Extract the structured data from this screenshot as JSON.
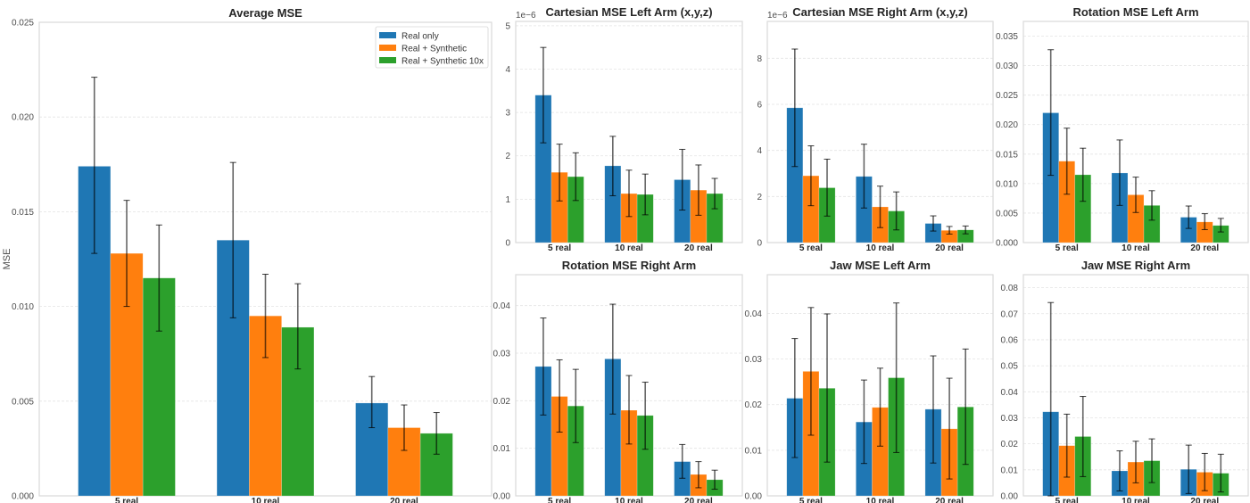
{
  "figure": {
    "legend_placement": "top-right of Average MSE panel"
  },
  "chart_data": [
    {
      "id": "avg",
      "type": "bar",
      "title": "Average MSE",
      "xlabel": "",
      "ylabel": "MSE",
      "categories": [
        "5 real",
        "10 real",
        "20 real"
      ],
      "ylim": [
        0,
        0.025
      ],
      "yticks": [
        0.0,
        0.005,
        0.01,
        0.015,
        0.02,
        0.025
      ],
      "ytick_labels": [
        "0.000",
        "0.005",
        "0.010",
        "0.015",
        "0.020",
        "0.025"
      ],
      "offset_text": "",
      "grid": true,
      "legend": true,
      "series": [
        {
          "name": "Real only",
          "color": "#1f77b4",
          "values": [
            0.0174,
            0.0135,
            0.0049
          ],
          "err_low": [
            0.0128,
            0.0094,
            0.0036
          ],
          "err_high": [
            0.0221,
            0.0176,
            0.0063
          ]
        },
        {
          "name": "Real + Synthetic",
          "color": "#ff7f0e",
          "values": [
            0.0128,
            0.0095,
            0.0036
          ],
          "err_low": [
            0.01,
            0.0073,
            0.0024
          ],
          "err_high": [
            0.0156,
            0.0117,
            0.0048
          ]
        },
        {
          "name": "Real + Synthetic 10x",
          "color": "#2ca02c",
          "values": [
            0.0115,
            0.0089,
            0.0033
          ],
          "err_low": [
            0.0087,
            0.0067,
            0.0022
          ],
          "err_high": [
            0.0143,
            0.0112,
            0.0044
          ]
        }
      ]
    },
    {
      "id": "cart_left",
      "type": "bar",
      "title": "Cartesian MSE Left Arm (x,y,z)",
      "xlabel": "",
      "ylabel": "",
      "categories": [
        "5 real",
        "10 real",
        "20 real"
      ],
      "ylim": [
        0,
        5.1
      ],
      "yticks": [
        0,
        1,
        2,
        3,
        4,
        5
      ],
      "ytick_labels": [
        "0",
        "1",
        "2",
        "3",
        "4",
        "5"
      ],
      "offset_text": "1e−6",
      "grid": true,
      "legend": false,
      "series": [
        {
          "name": "Real only",
          "color": "#1f77b4",
          "values": [
            3.4,
            1.77,
            1.45
          ],
          "err_low": [
            2.3,
            1.08,
            0.75
          ],
          "err_high": [
            4.5,
            2.45,
            2.15
          ]
        },
        {
          "name": "Real + Synthetic",
          "color": "#ff7f0e",
          "values": [
            1.62,
            1.13,
            1.21
          ],
          "err_low": [
            0.96,
            0.6,
            0.63
          ],
          "err_high": [
            2.27,
            1.67,
            1.79
          ]
        },
        {
          "name": "Real + Synthetic 10x",
          "color": "#2ca02c",
          "values": [
            1.52,
            1.11,
            1.13
          ],
          "err_low": [
            0.97,
            0.64,
            0.78
          ],
          "err_high": [
            2.07,
            1.58,
            1.48
          ]
        }
      ]
    },
    {
      "id": "cart_right",
      "type": "bar",
      "title": "Cartesian MSE Right Arm (x,y,z)",
      "xlabel": "",
      "ylabel": "",
      "categories": [
        "5 real",
        "10 real",
        "20 real"
      ],
      "ylim": [
        0,
        9.6
      ],
      "yticks": [
        0,
        2,
        4,
        6,
        8
      ],
      "ytick_labels": [
        "0",
        "2",
        "4",
        "6",
        "8"
      ],
      "offset_text": "1e−6",
      "grid": true,
      "legend": false,
      "series": [
        {
          "name": "Real only",
          "color": "#1f77b4",
          "values": [
            5.85,
            2.87,
            0.83
          ],
          "err_low": [
            3.3,
            1.5,
            0.5
          ],
          "err_high": [
            8.4,
            4.27,
            1.16
          ]
        },
        {
          "name": "Real + Synthetic",
          "color": "#ff7f0e",
          "values": [
            2.9,
            1.55,
            0.53
          ],
          "err_low": [
            1.6,
            0.65,
            0.37
          ],
          "err_high": [
            4.2,
            2.45,
            0.7
          ]
        },
        {
          "name": "Real + Synthetic 10x",
          "color": "#2ca02c",
          "values": [
            2.38,
            1.37,
            0.55
          ],
          "err_low": [
            1.15,
            0.55,
            0.38
          ],
          "err_high": [
            3.62,
            2.2,
            0.72
          ]
        }
      ]
    },
    {
      "id": "rot_left",
      "type": "bar",
      "title": "Rotation MSE Left Arm",
      "xlabel": "",
      "ylabel": "",
      "categories": [
        "5 real",
        "10 real",
        "20 real"
      ],
      "ylim": [
        0,
        0.0375
      ],
      "yticks": [
        0.0,
        0.005,
        0.01,
        0.015,
        0.02,
        0.025,
        0.03,
        0.035
      ],
      "ytick_labels": [
        "0.000",
        "0.005",
        "0.010",
        "0.015",
        "0.020",
        "0.025",
        "0.030",
        "0.035"
      ],
      "offset_text": "",
      "grid": true,
      "legend": false,
      "series": [
        {
          "name": "Real only",
          "color": "#1f77b4",
          "values": [
            0.022,
            0.0118,
            0.0043
          ],
          "err_low": [
            0.0114,
            0.0063,
            0.0024
          ],
          "err_high": [
            0.0327,
            0.0174,
            0.0062
          ]
        },
        {
          "name": "Real + Synthetic",
          "color": "#ff7f0e",
          "values": [
            0.0138,
            0.0081,
            0.0035
          ],
          "err_low": [
            0.0082,
            0.0051,
            0.0022
          ],
          "err_high": [
            0.0194,
            0.0111,
            0.0049
          ]
        },
        {
          "name": "Real + Synthetic 10x",
          "color": "#2ca02c",
          "values": [
            0.0115,
            0.0063,
            0.0029
          ],
          "err_low": [
            0.007,
            0.0038,
            0.0018
          ],
          "err_high": [
            0.016,
            0.0088,
            0.0041
          ]
        }
      ]
    },
    {
      "id": "rot_right",
      "type": "bar",
      "title": "Rotation MSE Right Arm",
      "xlabel": "",
      "ylabel": "",
      "categories": [
        "5 real",
        "10 real",
        "20 real"
      ],
      "ylim": [
        0,
        0.0465
      ],
      "yticks": [
        0.0,
        0.01,
        0.02,
        0.03,
        0.04
      ],
      "ytick_labels": [
        "0.00",
        "0.01",
        "0.02",
        "0.03",
        "0.04"
      ],
      "offset_text": "",
      "grid": true,
      "legend": false,
      "series": [
        {
          "name": "Real only",
          "color": "#1f77b4",
          "values": [
            0.0272,
            0.0288,
            0.0072
          ],
          "err_low": [
            0.017,
            0.0172,
            0.0037
          ],
          "err_high": [
            0.0374,
            0.0403,
            0.0108
          ]
        },
        {
          "name": "Real + Synthetic",
          "color": "#ff7f0e",
          "values": [
            0.0209,
            0.018,
            0.0045
          ],
          "err_low": [
            0.0134,
            0.0109,
            0.0017
          ],
          "err_high": [
            0.0286,
            0.0253,
            0.0072
          ]
        },
        {
          "name": "Real + Synthetic 10x",
          "color": "#2ca02c",
          "values": [
            0.0189,
            0.0169,
            0.0034
          ],
          "err_low": [
            0.0112,
            0.0098,
            0.0014
          ],
          "err_high": [
            0.0266,
            0.0239,
            0.0054
          ]
        }
      ]
    },
    {
      "id": "jaw_left",
      "type": "bar",
      "title": "Jaw MSE Left Arm",
      "xlabel": "",
      "ylabel": "",
      "categories": [
        "5 real",
        "10 real",
        "20 real"
      ],
      "ylim": [
        0,
        0.0485
      ],
      "yticks": [
        0.0,
        0.01,
        0.02,
        0.03,
        0.04
      ],
      "ytick_labels": [
        "0.00",
        "0.01",
        "0.02",
        "0.03",
        "0.04"
      ],
      "offset_text": "",
      "grid": true,
      "legend": false,
      "series": [
        {
          "name": "Real only",
          "color": "#1f77b4",
          "values": [
            0.0214,
            0.0162,
            0.019
          ],
          "err_low": [
            0.0084,
            0.0071,
            0.0072
          ],
          "err_high": [
            0.0345,
            0.0254,
            0.0307
          ]
        },
        {
          "name": "Real + Synthetic",
          "color": "#ff7f0e",
          "values": [
            0.0273,
            0.0194,
            0.0147
          ],
          "err_low": [
            0.0133,
            0.0109,
            0.0037
          ],
          "err_high": [
            0.0413,
            0.028,
            0.0258
          ]
        },
        {
          "name": "Real + Synthetic 10x",
          "color": "#2ca02c",
          "values": [
            0.0236,
            0.0259,
            0.0195
          ],
          "err_low": [
            0.0074,
            0.0095,
            0.0069
          ],
          "err_high": [
            0.0399,
            0.0423,
            0.0322
          ]
        }
      ]
    },
    {
      "id": "jaw_right",
      "type": "bar",
      "title": "Jaw MSE Right Arm",
      "xlabel": "",
      "ylabel": "",
      "categories": [
        "5 real",
        "10 real",
        "20 real"
      ],
      "ylim": [
        0,
        0.085
      ],
      "yticks": [
        0.0,
        0.01,
        0.02,
        0.03,
        0.04,
        0.05,
        0.06,
        0.07,
        0.08
      ],
      "ytick_labels": [
        "0.00",
        "0.01",
        "0.02",
        "0.03",
        "0.04",
        "0.05",
        "0.06",
        "0.07",
        "0.08"
      ],
      "offset_text": "",
      "grid": true,
      "legend": false,
      "series": [
        {
          "name": "Real only",
          "color": "#1f77b4",
          "values": [
            0.0323,
            0.0096,
            0.0102
          ],
          "err_low": [
            0.0,
            0.0019,
            0.0009
          ],
          "err_high": [
            0.0743,
            0.0173,
            0.0195
          ]
        },
        {
          "name": "Real + Synthetic",
          "color": "#ff7f0e",
          "values": [
            0.0193,
            0.013,
            0.0091
          ],
          "err_low": [
            0.0072,
            0.005,
            0.002
          ],
          "err_high": [
            0.0314,
            0.021,
            0.0163
          ]
        },
        {
          "name": "Real + Synthetic 10x",
          "color": "#2ca02c",
          "values": [
            0.0228,
            0.0135,
            0.0087
          ],
          "err_low": [
            0.0074,
            0.0051,
            0.0015
          ],
          "err_high": [
            0.0382,
            0.0219,
            0.016
          ]
        }
      ]
    }
  ]
}
